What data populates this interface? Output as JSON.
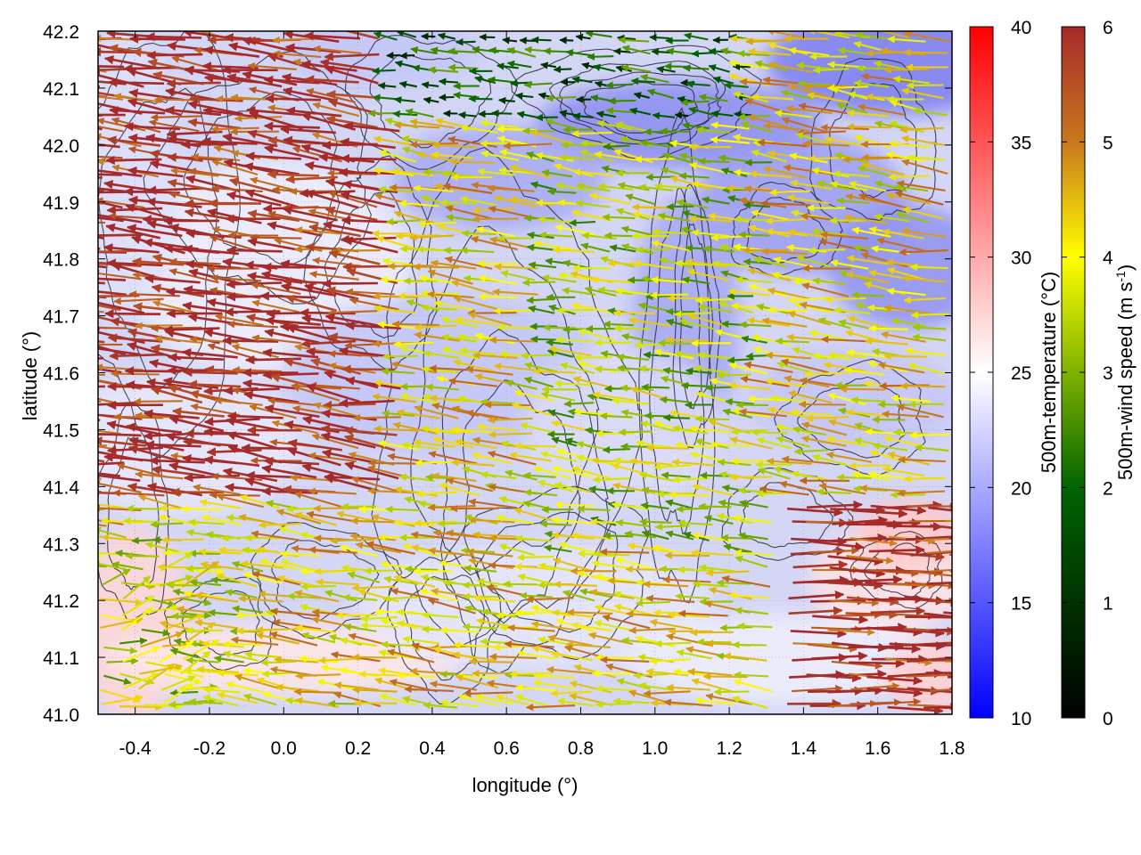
{
  "chart_data": {
    "type": "heatmap",
    "overlays": [
      "contour",
      "vector"
    ],
    "xlabel": "longitude (°)",
    "ylabel": "latitude (°)",
    "xlim": [
      -0.5,
      1.8
    ],
    "ylim": [
      41.0,
      42.2
    ],
    "xticks": [
      "-0.4",
      "-0.2",
      "0.0",
      "0.2",
      "0.4",
      "0.6",
      "0.8",
      "1.0",
      "1.2",
      "1.4",
      "1.6",
      "1.8"
    ],
    "xtick_values": [
      -0.4,
      -0.2,
      0.0,
      0.2,
      0.4,
      0.6,
      0.8,
      1.0,
      1.2,
      1.4,
      1.6,
      1.8
    ],
    "yticks": [
      "41.0",
      "41.1",
      "41.2",
      "41.3",
      "41.4",
      "41.5",
      "41.6",
      "41.7",
      "41.8",
      "41.9",
      "42.0",
      "42.1",
      "42.2"
    ],
    "ytick_values": [
      41.0,
      41.1,
      41.2,
      41.3,
      41.4,
      41.5,
      41.6,
      41.7,
      41.8,
      41.9,
      42.0,
      42.1,
      42.2
    ],
    "grid": true,
    "temperature_colorbar": {
      "label": "500m-temperature (°C)",
      "range": [
        10,
        40
      ],
      "ticks": [
        "10",
        "15",
        "20",
        "25",
        "30",
        "35",
        "40"
      ],
      "tick_values": [
        10,
        15,
        20,
        25,
        30,
        35,
        40
      ],
      "colors": [
        "#0000ff",
        "#ffffff",
        "#ff0000"
      ]
    },
    "wind_colorbar": {
      "label_main": "500m-wind speed (m s",
      "label_sup": "-1",
      "label_end": ")",
      "range": [
        0,
        6
      ],
      "ticks": [
        "0",
        "1",
        "2",
        "3",
        "4",
        "5",
        "6"
      ],
      "tick_values": [
        0,
        1,
        2,
        3,
        4,
        5,
        6
      ],
      "colors": [
        "#000000",
        "#006400",
        "#ffff00",
        "#c8781e",
        "#a52a2a"
      ]
    },
    "field_description": {
      "temperature_range_shown": [
        17,
        28
      ],
      "dominant_wind_direction": "westward (from east)",
      "max_wind_speed_shown": 6
    }
  }
}
